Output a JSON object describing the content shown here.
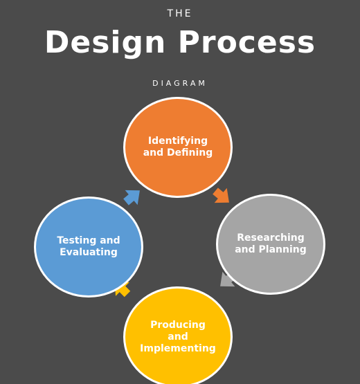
{
  "header": {
    "pre_title": "THE",
    "title": "Design Process",
    "sub_title": "DIAGRAM"
  },
  "nodes": [
    {
      "id": "identifying",
      "label": "Identifying\nand Defining",
      "color": "#ee7d31"
    },
    {
      "id": "researching",
      "label": "Researching\nand Planning",
      "color": "#a5a5a5"
    },
    {
      "id": "producing",
      "label": "Producing\nand\nImplementing",
      "color": "#ffc000"
    },
    {
      "id": "testing",
      "label": "Testing and\nEvaluating",
      "color": "#5b9bd5"
    }
  ],
  "arrows": [
    {
      "from": "identifying",
      "to": "researching",
      "color": "#ee7d31"
    },
    {
      "from": "researching",
      "to": "producing",
      "color": "#a5a5a5"
    },
    {
      "from": "producing",
      "to": "testing",
      "color": "#ffc000"
    },
    {
      "from": "testing",
      "to": "identifying",
      "color": "#5b9bd5"
    }
  ],
  "background_color": "#4b4b4b"
}
